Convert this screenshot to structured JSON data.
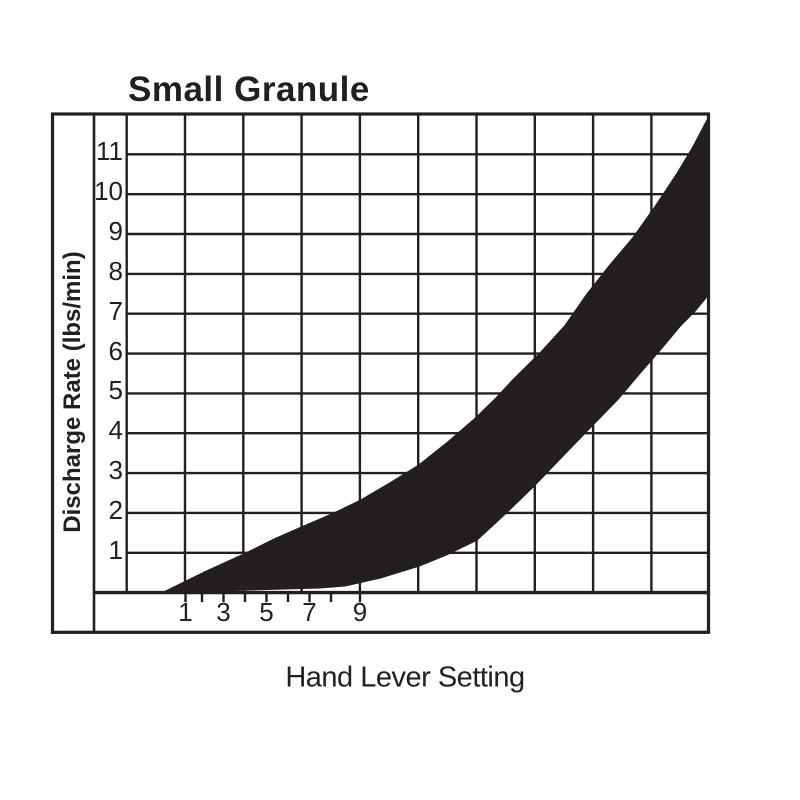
{
  "title": "Small Granule",
  "x_axis": {
    "label": "Hand Lever Setting",
    "tick_labels": [
      "1",
      "3",
      "5",
      "7",
      "9"
    ]
  },
  "y_axis": {
    "label": "Discharge Rate (lbs/min)",
    "tick_labels": [
      "11",
      "10",
      "9",
      "8",
      "7",
      "6",
      "5",
      "4",
      "3",
      "2",
      "1"
    ]
  },
  "colors": {
    "ink": "#231f20",
    "background": "#ffffff"
  },
  "chart_data": {
    "type": "area",
    "title": "Small Granule",
    "xlabel": "Hand Lever Setting",
    "ylabel": "Discharge Rate (lbs/min)",
    "x_tick_values": [
      1,
      2,
      3,
      4,
      5,
      6,
      7,
      8,
      9
    ],
    "x_labeled_ticks": [
      1,
      3,
      5,
      7,
      9
    ],
    "y_tick_values": [
      1,
      2,
      3,
      4,
      5,
      6,
      7,
      8,
      9,
      10,
      11
    ],
    "ylim": [
      0,
      12
    ],
    "grid": true,
    "legend_position": "none",
    "band": {
      "name": "discharge-rate-range",
      "fill": "#231f20",
      "upper": [
        [
          -0.03,
          0.0
        ],
        [
          1.89,
          0.52
        ],
        [
          3.77,
          0.99
        ],
        [
          5.09,
          1.35
        ],
        [
          6.33,
          1.65
        ],
        [
          7.7,
          1.97
        ],
        [
          9.02,
          2.32
        ],
        [
          10.35,
          2.75
        ],
        [
          11.67,
          3.2
        ],
        [
          13.0,
          3.78
        ],
        [
          14.32,
          4.41
        ],
        [
          15.19,
          4.88
        ],
        [
          15.97,
          5.34
        ],
        [
          17.2,
          6.01
        ],
        [
          18.35,
          6.7
        ],
        [
          19.35,
          7.49
        ],
        [
          20.4,
          8.22
        ],
        [
          21.45,
          8.9
        ],
        [
          22.46,
          9.68
        ],
        [
          23.46,
          10.51
        ],
        [
          24.19,
          11.18
        ],
        [
          24.88,
          11.9
        ]
      ],
      "lower": [
        [
          -0.03,
          0.0
        ],
        [
          2.49,
          0.05
        ],
        [
          7.15,
          0.12
        ],
        [
          8.29,
          0.17
        ],
        [
          9.89,
          0.37
        ],
        [
          11.67,
          0.67
        ],
        [
          13.0,
          0.97
        ],
        [
          14.32,
          1.32
        ],
        [
          15.6,
          1.97
        ],
        [
          16.88,
          2.65
        ],
        [
          18.25,
          3.43
        ],
        [
          19.62,
          4.21
        ],
        [
          20.77,
          4.86
        ],
        [
          21.77,
          5.51
        ],
        [
          22.69,
          6.09
        ],
        [
          23.6,
          6.69
        ],
        [
          24.29,
          7.07
        ],
        [
          24.88,
          7.47
        ]
      ]
    }
  }
}
